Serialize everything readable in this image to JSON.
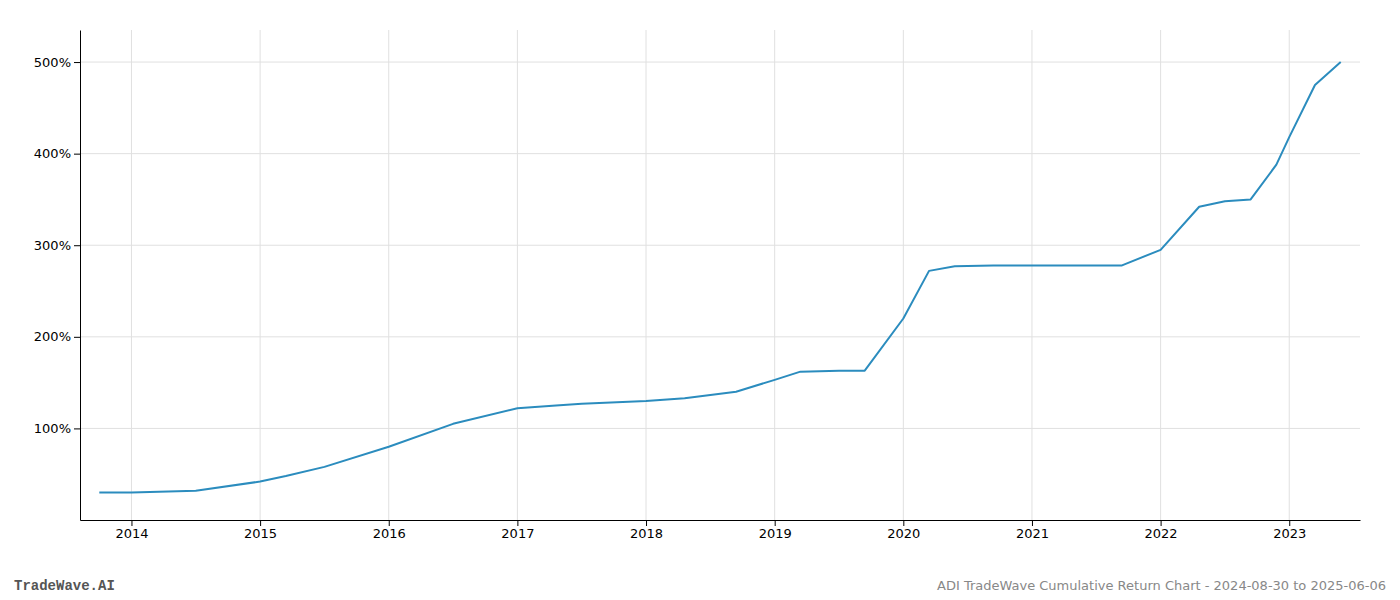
{
  "chart_data": {
    "type": "line",
    "x": [
      2013.75,
      2014.0,
      2014.5,
      2015.0,
      2015.2,
      2015.5,
      2016.0,
      2016.5,
      2017.0,
      2017.3,
      2017.5,
      2018.0,
      2018.3,
      2018.7,
      2019.0,
      2019.2,
      2019.5,
      2019.7,
      2020.0,
      2020.2,
      2020.4,
      2020.7,
      2021.0,
      2021.3,
      2021.5,
      2021.7,
      2022.0,
      2022.3,
      2022.5,
      2022.7,
      2022.9,
      2023.0,
      2023.2,
      2023.4
    ],
    "values": [
      30,
      30,
      32,
      42,
      48,
      58,
      80,
      105,
      122,
      125,
      127,
      130,
      133,
      140,
      153,
      162,
      163,
      163,
      220,
      272,
      277,
      278,
      278,
      278,
      278,
      278,
      295,
      342,
      348,
      350,
      388,
      418,
      475,
      500
    ],
    "color": "#2b8cbe",
    "xlim": [
      2013.6,
      2023.55
    ],
    "xticks": [
      2014,
      2015,
      2016,
      2017,
      2018,
      2019,
      2020,
      2021,
      2022,
      2023
    ],
    "ylim": [
      0,
      535
    ],
    "yticks": [
      {
        "value": 100,
        "label": "100%"
      },
      {
        "value": 200,
        "label": "200%"
      },
      {
        "value": 300,
        "label": "300%"
      },
      {
        "value": 400,
        "label": "400%"
      },
      {
        "value": 500,
        "label": "500%"
      }
    ],
    "grid": true,
    "annotations": [
      "TradeWave.AI",
      "ADI TradeWave Cumulative Return Chart - 2024-08-30 to 2025-06-06"
    ]
  }
}
